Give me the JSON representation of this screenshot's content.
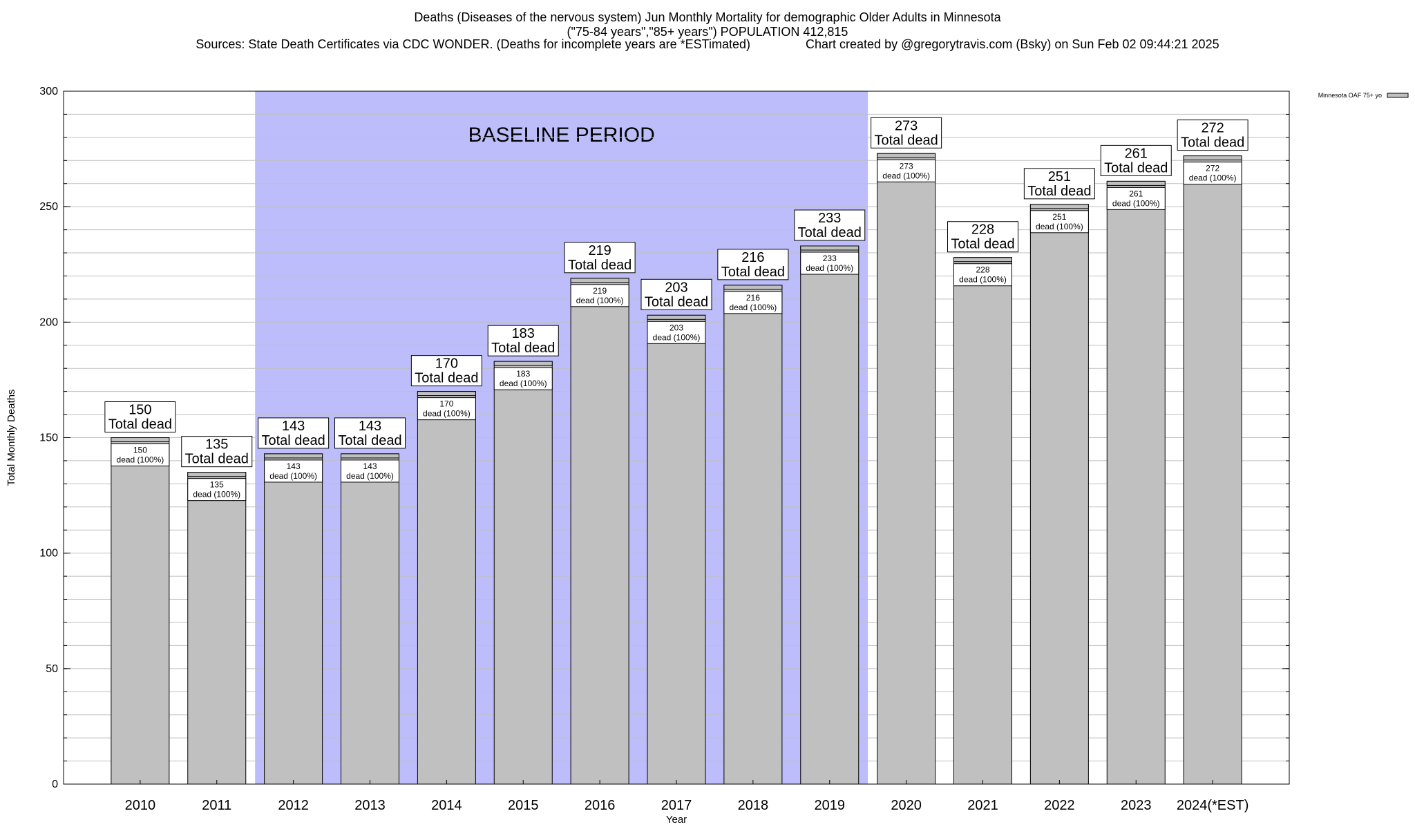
{
  "header": {
    "line1": "Deaths (Diseases of the nervous system) Jun Monthly Mortality for demographic Older Adults in Minnesota",
    "line2": "(\"75-84 years\",\"85+ years\") POPULATION 412,815",
    "line3": "Sources: State Death Certificates via CDC WONDER. (Deaths for incomplete years are *ESTimated)                Chart created by @gregorytravis.com (Bsky) on Sun Feb 02 09:44:21 2025"
  },
  "chart_data": {
    "type": "bar",
    "title": "Deaths (Diseases of the nervous system) Jun Monthly Mortality for demographic Older Adults in Minnesota",
    "xlabel": "Year",
    "ylabel": "Total Monthly Deaths",
    "ylim": [
      0,
      300
    ],
    "yticks": [
      0,
      50,
      100,
      150,
      200,
      250,
      300
    ],
    "minor_grid_step": 10,
    "grid": true,
    "legend_position": "top-right",
    "categories": [
      "2010",
      "2011",
      "2012",
      "2013",
      "2014",
      "2015",
      "2016",
      "2017",
      "2018",
      "2019",
      "2020",
      "2021",
      "2022",
      "2023",
      "2024(*EST)"
    ],
    "series": [
      {
        "name": "Minnesota OAF 75+ yo",
        "color": "#c0c0c0",
        "values": [
          150,
          135,
          143,
          143,
          170,
          183,
          219,
          203,
          216,
          233,
          273,
          228,
          251,
          261,
          272
        ]
      }
    ],
    "top_label_suffix": "Total dead",
    "inner_label_suffix": "dead (100%)",
    "baseline": {
      "label": "BASELINE PERIOD",
      "start_category": "2012",
      "end_category": "2019",
      "color": "#bdbdfb"
    }
  }
}
